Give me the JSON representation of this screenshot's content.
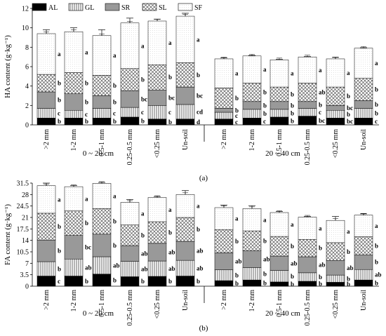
{
  "legend": [
    {
      "key": "AL",
      "label": "AL"
    },
    {
      "key": "GL",
      "label": "GL"
    },
    {
      "key": "SR",
      "label": "SR"
    },
    {
      "key": "SL",
      "label": "SL"
    },
    {
      "key": "SF",
      "label": "SF"
    }
  ],
  "chart_data": [
    {
      "type": "bar",
      "stacked": true,
      "caption": "(a)",
      "ylabel": "HA content (g·kg⁻¹)",
      "ylim": [
        0,
        12
      ],
      "yticks": [
        0,
        2,
        4,
        6,
        8,
        10,
        12
      ],
      "yticklabels": [
        "0",
        "2",
        "4",
        "6",
        "8",
        "10",
        "12"
      ],
      "groups": [
        {
          "label": "0 ~ 20 cm",
          "categories": [
            ">2 mm",
            "1-2 mm",
            "0.5-1 mm",
            "0.25-0.5 mm",
            "<0.25 mm",
            "Un-soil"
          ]
        },
        {
          "label": "20 ~ 40 cm",
          "categories": [
            ">2 mm",
            "1-2 mm",
            "0.5-1 mm",
            "0.25-0.5 mm",
            "<0.25 mm",
            "Un-soil"
          ]
        }
      ],
      "series": [
        {
          "name": "AL",
          "values": [
            0.7,
            0.7,
            0.7,
            0.8,
            0.6,
            0.6,
            0.6,
            0.7,
            0.8,
            0.9,
            0.7,
            0.7
          ],
          "letters": [
            "b",
            "b",
            "b",
            "b",
            "b",
            "d",
            "c",
            "c",
            "b",
            "bc",
            "bc",
            "c"
          ]
        },
        {
          "name": "GL",
          "values": [
            1.0,
            0.8,
            1.0,
            1.0,
            1.4,
            1.5,
            0.7,
            0.9,
            0.8,
            0.8,
            0.8,
            1.0
          ],
          "letters": [
            "c",
            "c",
            "c",
            "c",
            "c",
            "cd",
            "c",
            "b",
            "b",
            "c",
            "b",
            "b"
          ]
        },
        {
          "name": "SR",
          "values": [
            1.7,
            1.7,
            1.3,
            1.7,
            1.6,
            1.8,
            0.4,
            0.8,
            0.8,
            0.7,
            0.5,
            0.8
          ],
          "letters": [
            "b",
            "b",
            "b",
            "bc",
            "bc",
            "bc",
            "b",
            "b",
            "b",
            "b",
            "bc",
            "b"
          ]
        },
        {
          "name": "SL",
          "values": [
            1.8,
            2.2,
            2.1,
            2.3,
            2.6,
            2.5,
            2.1,
            1.9,
            1.5,
            1.9,
            1.9,
            2.3
          ],
          "letters": [
            "b",
            "b",
            "b",
            "b",
            "b",
            "b",
            "b",
            "b",
            "b",
            "ab",
            "b",
            "b"
          ]
        },
        {
          "name": "SF",
          "values": [
            4.2,
            4.2,
            4.1,
            4.7,
            4.5,
            4.8,
            3.0,
            2.8,
            2.8,
            2.7,
            2.9,
            3.1
          ],
          "letters": [
            "a",
            "a",
            "a",
            "a",
            "a",
            "a",
            "a",
            "a",
            "a",
            "a",
            "a",
            "a"
          ]
        }
      ],
      "error": [
        0.4,
        0.4,
        0.6,
        0.5,
        0.2,
        0.3,
        0.1,
        0.05,
        0.05,
        0.05,
        0.15,
        0.05
      ]
    },
    {
      "type": "bar",
      "stacked": true,
      "caption": "(b)",
      "ylabel": "FA content (g·kg⁻¹)",
      "ylim": [
        0,
        31.5
      ],
      "yticks": [
        0,
        3.5,
        7,
        10.5,
        14,
        17.5,
        21,
        24.5,
        28,
        31.5
      ],
      "yticklabels": [
        "0",
        "3.5",
        "7",
        "10.5",
        "14",
        "17.5",
        "21",
        "24.5",
        "28",
        "31.5"
      ],
      "groups": [
        {
          "label": "0 ~ 20 cm",
          "categories": [
            ">2 mm",
            "1-2 mm",
            "0.5-1 mm",
            "0.25-0.5 mm",
            "<0.25 mm",
            "Un-soil"
          ]
        },
        {
          "label": "20 ~ 40 cm",
          "categories": [
            ">2 mm",
            "1-2 mm",
            "0.5-1 mm",
            "0.25-0.5 mm",
            "<0.25 mm",
            "Un-soil"
          ]
        }
      ],
      "series": [
        {
          "name": "AL",
          "values": [
            3.1,
            3.1,
            3.7,
            2.9,
            3.0,
            3.1,
            1.7,
            1.9,
            1.3,
            1.5,
            1.2,
            1.9
          ],
          "letters": [
            "c",
            "b",
            "b",
            "b",
            "b",
            "b",
            "b",
            "b",
            "b",
            "b",
            "b",
            "b"
          ]
        },
        {
          "name": "GL",
          "values": [
            4.4,
            5.2,
            5.3,
            4.7,
            4.7,
            4.8,
            3.3,
            3.8,
            3.5,
            2.6,
            2.2,
            3.2
          ],
          "letters": [
            "b",
            "ab",
            "ab",
            "ab",
            "ab",
            "ab",
            "b",
            "b",
            "b",
            "b",
            "b",
            "ab"
          ]
        },
        {
          "name": "SR",
          "values": [
            6.6,
            7.2,
            6.9,
            4.8,
            5.4,
            5.8,
            5.2,
            5.1,
            4.4,
            4.9,
            4.4,
            4.5
          ],
          "letters": [
            "b",
            "bc",
            "b",
            "ab",
            "ab",
            "ab",
            "ab",
            "ab",
            "ab",
            "ab",
            "ab",
            "b"
          ]
        },
        {
          "name": "SL",
          "values": [
            8.2,
            7.5,
            7.8,
            6.3,
            6.6,
            7.3,
            7.1,
            6.1,
            6.0,
            5.3,
            5.5,
            5.5
          ],
          "letters": [
            "b",
            "b",
            "b",
            "b",
            "b",
            "b",
            "b",
            "b",
            "b",
            "b",
            "b",
            "b"
          ]
        },
        {
          "name": "SF",
          "values": [
            8.4,
            7.4,
            7.7,
            6.9,
            7.4,
            7.0,
            6.7,
            6.8,
            7.3,
            6.8,
            6.8,
            6.6
          ],
          "letters": [
            "a",
            "a",
            "a",
            "a",
            "a",
            "a",
            "a",
            "a",
            "a",
            "a",
            "a",
            "a"
          ]
        }
      ],
      "error": [
        0.8,
        0.3,
        0.3,
        0.9,
        0.3,
        1.2,
        0.8,
        0.9,
        0.3,
        0.2,
        1.2,
        0.4
      ]
    }
  ]
}
